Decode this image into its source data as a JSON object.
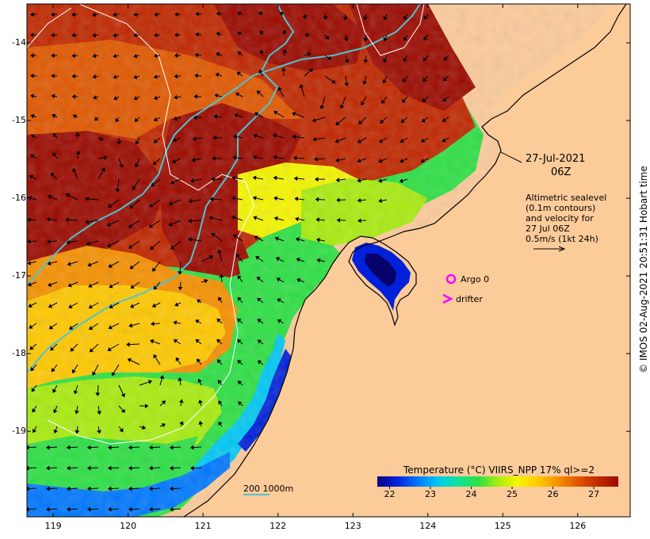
{
  "map": {
    "y_axis": {
      "ticks": [
        "-14",
        "-15",
        "-16",
        "-17",
        "-18",
        "-19"
      ],
      "range": [
        -20.1,
        -13.5
      ]
    },
    "x_axis": {
      "ticks": [
        "119",
        "120",
        "121",
        "122",
        "123",
        "124",
        "125",
        "126"
      ],
      "range": [
        118.65,
        126.7
      ]
    },
    "date_line1": "27-Jul-2021",
    "date_line2": "06Z",
    "legend_lines": [
      "Altimetric sealevel",
      "(0.1m contours)",
      "and velocity for",
      "27 Jul 06Z",
      "0.5m/s (1kt 24h)"
    ],
    "argo_label": "Argo 0",
    "drifter_label": "drifter",
    "scale_label": "200  1000m",
    "colorbar": {
      "title": "Temperature (°C) VIIRS_NPP 17% ql>=2",
      "ticks": [
        "22",
        "23",
        "24",
        "25",
        "26",
        "27"
      ],
      "range": [
        21.7,
        27.6
      ]
    },
    "credit": "© IMOS 02-Aug-2021 20:51:31 Hobart time",
    "colors": {
      "land": "#fccb9a",
      "coastline": "#000000",
      "isobath": "#4fc3cf",
      "sealevel_contour": "#ffffff",
      "argo_marker": "#ff00ff",
      "drifter_marker": "#ff00ff",
      "warm_extreme": "#9b0a00",
      "cold_extreme": "#08006b"
    },
    "colormap": [
      "#0a0080",
      "#0021d9",
      "#0078ff",
      "#00c8f2",
      "#12e0a0",
      "#2ee045",
      "#a8ec10",
      "#f5f500",
      "#ffc800",
      "#f59000",
      "#e05800",
      "#c02800",
      "#9b0a00"
    ]
  }
}
